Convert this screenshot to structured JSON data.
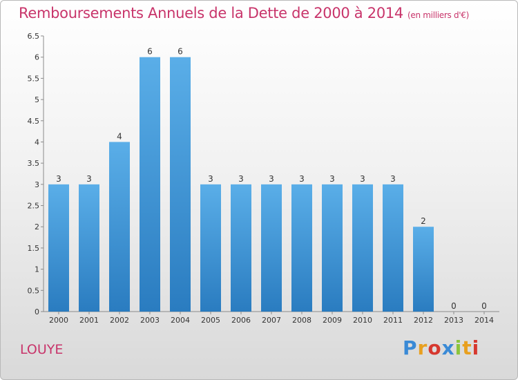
{
  "title": "Remboursements Annuels de la Dette de 2000 à 2014",
  "unit": "(en milliers d'€)",
  "commune": "LOUYE",
  "logo": {
    "text": "Proxiti",
    "colors": [
      "#3a8ad6",
      "#e8a020",
      "#d6382f",
      "#3a8ad6",
      "#8bc43c",
      "#e8a020",
      "#d6382f"
    ]
  },
  "colors": {
    "title": "#c8346a",
    "bar_top": "#5aaee8",
    "bar_bottom": "#2a7cc0"
  },
  "chart_data": {
    "type": "bar",
    "categories": [
      "2000",
      "2001",
      "2002",
      "2003",
      "2004",
      "2005",
      "2006",
      "2007",
      "2008",
      "2009",
      "2010",
      "2011",
      "2012",
      "2013",
      "2014"
    ],
    "values": [
      3,
      3,
      4,
      6,
      6,
      3,
      3,
      3,
      3,
      3,
      3,
      3,
      2,
      0,
      0
    ],
    "data_labels": [
      "3",
      "3",
      "4",
      "6",
      "6",
      "3",
      "3",
      "3",
      "3",
      "3",
      "3",
      "3",
      "2",
      "0",
      "0"
    ],
    "yticks": [
      "0",
      "0.5",
      "1",
      "1.5",
      "2",
      "2.5",
      "3",
      "3.5",
      "4",
      "4.5",
      "5",
      "5.5",
      "6",
      "6.5"
    ],
    "ylim": [
      0,
      6.5
    ],
    "grid": false
  }
}
